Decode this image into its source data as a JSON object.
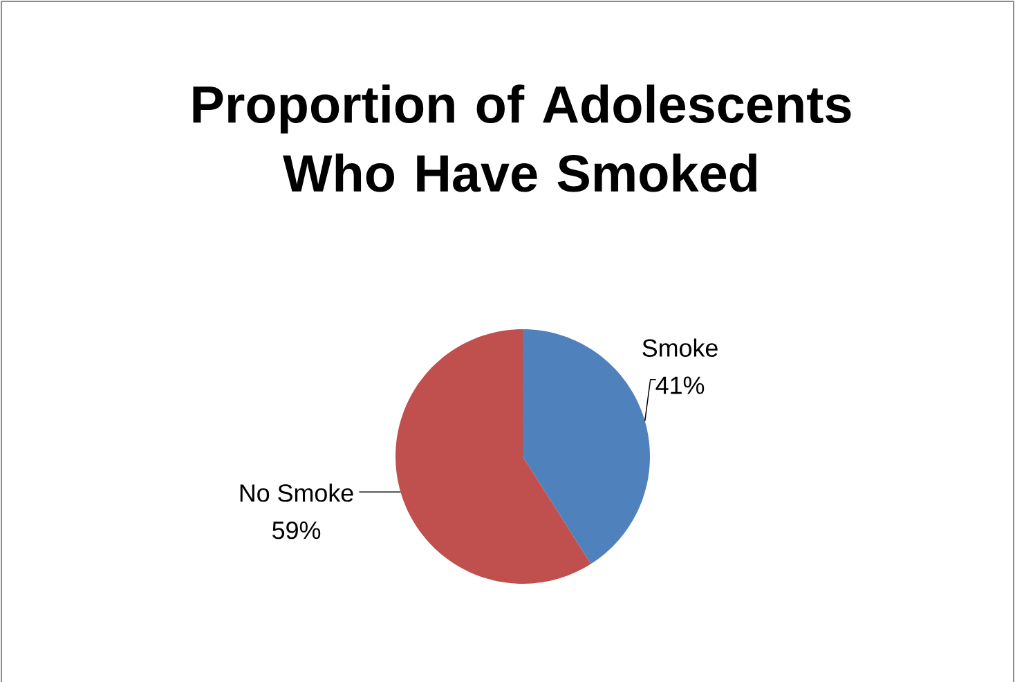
{
  "chart_data": {
    "type": "pie",
    "title": "Proportion of Adolescents Who Have Smoked",
    "categories": [
      "Smoke",
      "No Smoke"
    ],
    "values": [
      41,
      59
    ],
    "value_labels": [
      "41%",
      "59%"
    ],
    "colors": [
      "#4f81bd",
      "#c0504d"
    ]
  }
}
